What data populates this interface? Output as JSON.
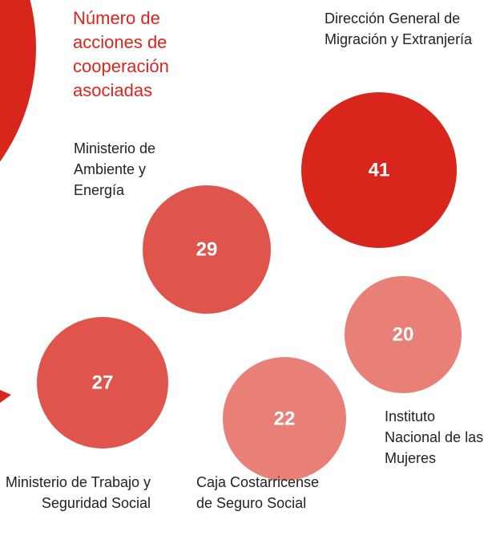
{
  "chart_data": {
    "type": "bubble",
    "legend_title": "Número de acciones de cooperación asociadas",
    "categories": [
      "Dirección General de Migración y Extranjería",
      "Ministerio de Ambiente y Energía",
      "Instituto Nacional de las Mujeres",
      "Ministerio de Trabajo y Seguridad Social",
      "Caja Costarricense de Seguro Social"
    ],
    "values": [
      41,
      29,
      20,
      27,
      22
    ],
    "colors": [
      "#d9261c",
      "#e0554b",
      "#e88078",
      "#e0554b",
      "#e88078"
    ]
  }
}
